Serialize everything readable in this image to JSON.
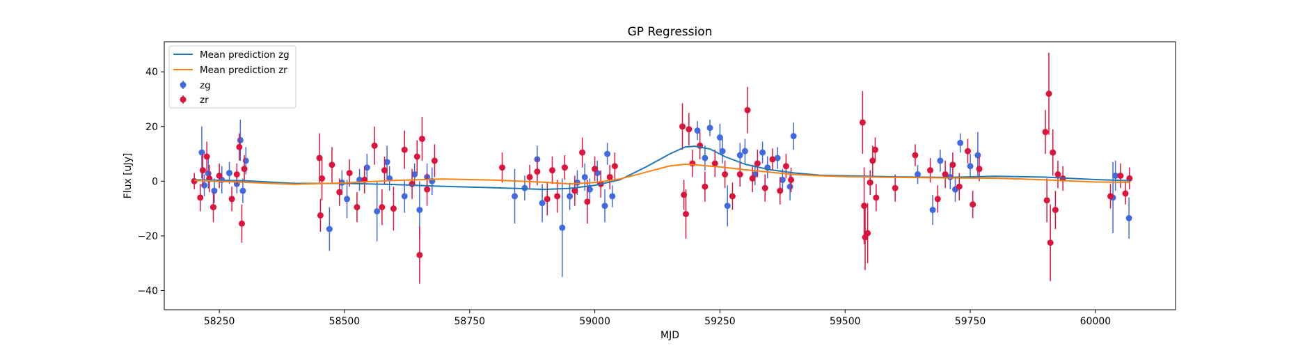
{
  "chart_data": {
    "type": "scatter",
    "title": "GP Regression",
    "xlabel": "MJD",
    "ylabel": "Flux [uJy]",
    "xlim": [
      58140,
      60160
    ],
    "ylim": [
      -47,
      51
    ],
    "x_ticks": [
      58250,
      58500,
      58750,
      59000,
      59250,
      59500,
      59750,
      60000
    ],
    "y_ticks": [
      -40,
      -20,
      0,
      20,
      40
    ],
    "x_tick_labels": [
      "58250",
      "58500",
      "58750",
      "59000",
      "59250",
      "59500",
      "59750",
      "60000"
    ],
    "y_tick_labels": [
      "−40",
      "−20",
      "0",
      "20",
      "40"
    ],
    "legend_position": "top-left",
    "lines": [
      {
        "name": "Mean prediction zg",
        "color": "#1f77b4",
        "x": [
          58200,
          58300,
          58400,
          58500,
          58600,
          58700,
          58800,
          58900,
          58950,
          59000,
          59050,
          59100,
          59150,
          59180,
          59200,
          59230,
          59260,
          59300,
          59350,
          59400,
          59450,
          59500,
          59600,
          59700,
          59800,
          59900,
          60000,
          60070
        ],
        "y": [
          0.5,
          0.2,
          -0.8,
          -0.8,
          -1.2,
          -1.9,
          -2.4,
          -3.0,
          -2.6,
          -1.5,
          0.5,
          5.0,
          10.0,
          12.5,
          12.8,
          11.8,
          9.0,
          6.2,
          4.2,
          3.0,
          2.2,
          2.0,
          1.6,
          1.4,
          1.8,
          1.5,
          0.6,
          0.2
        ]
      },
      {
        "name": "Mean prediction zr",
        "color": "#ff7f0e",
        "x": [
          58200,
          58300,
          58400,
          58500,
          58600,
          58700,
          58800,
          58900,
          58950,
          59000,
          59050,
          59100,
          59150,
          59180,
          59200,
          59250,
          59300,
          59350,
          59400,
          59450,
          59500,
          59600,
          59700,
          59800,
          59900,
          60000,
          60070
        ],
        "y": [
          0.3,
          -0.4,
          -1.1,
          -0.6,
          0.3,
          0.8,
          0.4,
          -0.4,
          -1.0,
          -0.5,
          0.8,
          3.2,
          5.6,
          6.2,
          6.0,
          5.2,
          4.2,
          3.3,
          2.4,
          2.0,
          1.7,
          1.4,
          1.2,
          1.1,
          0.5,
          -0.3,
          -0.4
        ]
      }
    ],
    "series": [
      {
        "name": "zg",
        "color": "#4169e1",
        "points": [
          [
            58215,
            10.5,
            9.5
          ],
          [
            58220,
            -1.5,
            4.0
          ],
          [
            58228,
            2.8,
            5.5
          ],
          [
            58240,
            -3.5,
            4.5
          ],
          [
            58255,
            0.5,
            5.0
          ],
          [
            58270,
            3.0,
            4.0
          ],
          [
            58285,
            -1.0,
            3.5
          ],
          [
            58292,
            15.0,
            7.5
          ],
          [
            58297,
            -3.5,
            4.5
          ],
          [
            58303,
            7.5,
            5.0
          ],
          [
            58470,
            -17.5,
            8.0
          ],
          [
            58495,
            -0.5,
            4.5
          ],
          [
            58505,
            -6.5,
            7.0
          ],
          [
            58530,
            0.5,
            4.0
          ],
          [
            58545,
            5.0,
            5.0
          ],
          [
            58565,
            -11.0,
            11.0
          ],
          [
            58585,
            7.0,
            6.0
          ],
          [
            58590,
            1.0,
            4.5
          ],
          [
            58620,
            -5.5,
            6.0
          ],
          [
            58640,
            2.5,
            4.0
          ],
          [
            58650,
            -10.5,
            10.5
          ],
          [
            58665,
            1.5,
            5.0
          ],
          [
            58675,
            0.0,
            5.0
          ],
          [
            58840,
            -5.5,
            10.0
          ],
          [
            58860,
            -2.5,
            4.5
          ],
          [
            58885,
            8.0,
            5.0
          ],
          [
            58895,
            -8.0,
            7.0
          ],
          [
            58935,
            -17.0,
            18.0
          ],
          [
            58950,
            -5.5,
            5.0
          ],
          [
            58965,
            -0.5,
            4.5
          ],
          [
            58980,
            1.5,
            5.0
          ],
          [
            58990,
            -3.0,
            4.0
          ],
          [
            59005,
            3.0,
            4.5
          ],
          [
            59020,
            -9.0,
            6.0
          ],
          [
            59025,
            10.0,
            4.0
          ],
          [
            59035,
            -5.5,
            4.0
          ],
          [
            59205,
            18.5,
            3.5
          ],
          [
            59220,
            8.5,
            4.5
          ],
          [
            59230,
            19.5,
            3.0
          ],
          [
            59250,
            16.0,
            5.0
          ],
          [
            59255,
            11.0,
            4.5
          ],
          [
            59265,
            -9.0,
            7.5
          ],
          [
            59290,
            9.5,
            4.5
          ],
          [
            59300,
            11.0,
            4.5
          ],
          [
            59320,
            2.5,
            4.0
          ],
          [
            59335,
            10.5,
            4.0
          ],
          [
            59345,
            5.0,
            4.0
          ],
          [
            59365,
            8.5,
            4.0
          ],
          [
            59375,
            0.5,
            4.0
          ],
          [
            59390,
            -2.0,
            5.0
          ],
          [
            59397,
            16.5,
            5.0
          ],
          [
            59645,
            2.5,
            3.5
          ],
          [
            59675,
            -10.5,
            5.5
          ],
          [
            59690,
            7.5,
            4.0
          ],
          [
            59710,
            1.5,
            4.5
          ],
          [
            59720,
            -3.0,
            4.5
          ],
          [
            59730,
            14.0,
            3.5
          ],
          [
            59750,
            5.5,
            4.5
          ],
          [
            59765,
            9.5,
            8.5
          ],
          [
            60035,
            -6.0,
            13.0
          ],
          [
            60040,
            2.0,
            5.5
          ],
          [
            60067,
            -13.5,
            7.5
          ]
        ]
      },
      {
        "name": "zr",
        "color": "#dc143c",
        "points": [
          [
            58200,
            0.0,
            3.0
          ],
          [
            58212,
            -6.0,
            5.0
          ],
          [
            58217,
            4.0,
            6.0
          ],
          [
            58225,
            9.0,
            5.5
          ],
          [
            58230,
            1.0,
            5.0
          ],
          [
            58238,
            -9.5,
            5.5
          ],
          [
            58250,
            2.0,
            4.5
          ],
          [
            58275,
            -6.5,
            4.5
          ],
          [
            58285,
            2.5,
            4.0
          ],
          [
            58290,
            12.5,
            5.0
          ],
          [
            58295,
            -15.5,
            7.0
          ],
          [
            58300,
            4.5,
            5.0
          ],
          [
            58450,
            8.5,
            9.0
          ],
          [
            58452,
            -12.5,
            6.0
          ],
          [
            58455,
            1.0,
            8.0
          ],
          [
            58475,
            6.0,
            6.5
          ],
          [
            58490,
            -4.0,
            5.0
          ],
          [
            58510,
            3.0,
            5.0
          ],
          [
            58525,
            -9.5,
            5.5
          ],
          [
            58540,
            0.5,
            5.0
          ],
          [
            58560,
            13.0,
            7.0
          ],
          [
            58575,
            -9.5,
            6.5
          ],
          [
            58580,
            4.0,
            5.0
          ],
          [
            58598,
            -10.0,
            8.0
          ],
          [
            58620,
            11.5,
            7.0
          ],
          [
            58635,
            -1.0,
            5.5
          ],
          [
            58645,
            9.0,
            6.0
          ],
          [
            58650,
            -27.0,
            10.5
          ],
          [
            58655,
            15.5,
            8.0
          ],
          [
            58665,
            -3.0,
            6.0
          ],
          [
            58680,
            7.5,
            6.0
          ],
          [
            58815,
            5.0,
            5.5
          ],
          [
            58870,
            1.5,
            4.5
          ],
          [
            58885,
            3.5,
            5.0
          ],
          [
            58905,
            -6.5,
            6.0
          ],
          [
            58915,
            4.0,
            5.0
          ],
          [
            58925,
            -5.5,
            6.0
          ],
          [
            58940,
            5.0,
            4.5
          ],
          [
            58960,
            -3.5,
            5.5
          ],
          [
            58975,
            10.5,
            5.5
          ],
          [
            58985,
            -7.5,
            8.0
          ],
          [
            59000,
            4.5,
            4.5
          ],
          [
            59012,
            -1.0,
            5.0
          ],
          [
            59030,
            1.5,
            4.5
          ],
          [
            59040,
            5.5,
            5.0
          ],
          [
            59175,
            20.0,
            8.5
          ],
          [
            59178,
            -5.0,
            5.5
          ],
          [
            59182,
            -12.0,
            9.0
          ],
          [
            59188,
            19.0,
            6.0
          ],
          [
            59195,
            6.5,
            5.0
          ],
          [
            59210,
            13.0,
            5.0
          ],
          [
            59220,
            -2.0,
            5.5
          ],
          [
            59240,
            6.5,
            5.0
          ],
          [
            59260,
            2.5,
            5.0
          ],
          [
            59275,
            -5.5,
            5.0
          ],
          [
            59290,
            2.5,
            4.5
          ],
          [
            59305,
            26.0,
            8.5
          ],
          [
            59315,
            1.0,
            5.0
          ],
          [
            59325,
            6.5,
            5.0
          ],
          [
            59340,
            -2.5,
            5.0
          ],
          [
            59355,
            8.0,
            4.0
          ],
          [
            59370,
            -3.5,
            5.0
          ],
          [
            59382,
            5.5,
            4.5
          ],
          [
            59392,
            0.5,
            4.5
          ],
          [
            59535,
            21.5,
            11.5
          ],
          [
            59538,
            -9.0,
            14.0
          ],
          [
            59540,
            -20.5,
            12.0
          ],
          [
            59545,
            -19.0,
            11.0
          ],
          [
            59550,
            -0.5,
            4.5
          ],
          [
            59555,
            7.5,
            5.5
          ],
          [
            59560,
            11.5,
            4.5
          ],
          [
            59562,
            -6.0,
            5.0
          ],
          [
            59600,
            -2.5,
            5.0
          ],
          [
            59640,
            9.5,
            4.0
          ],
          [
            59670,
            4.0,
            4.5
          ],
          [
            59685,
            -6.5,
            5.0
          ],
          [
            59700,
            2.5,
            5.0
          ],
          [
            59715,
            6.0,
            4.5
          ],
          [
            59728,
            -2.0,
            5.0
          ],
          [
            59745,
            11.0,
            4.5
          ],
          [
            59755,
            -8.5,
            5.0
          ],
          [
            59768,
            4.5,
            4.5
          ],
          [
            59900,
            18.0,
            8.0
          ],
          [
            59903,
            -7.0,
            8.0
          ],
          [
            59907,
            32.0,
            15.0
          ],
          [
            59910,
            -22.5,
            14.0
          ],
          [
            59915,
            10.5,
            8.5
          ],
          [
            59920,
            -10.5,
            7.0
          ],
          [
            59925,
            2.5,
            5.0
          ],
          [
            59935,
            1.0,
            4.5
          ],
          [
            60030,
            -5.5,
            4.5
          ],
          [
            60050,
            2.0,
            4.5
          ],
          [
            60060,
            -4.5,
            4.0
          ],
          [
            60068,
            1.0,
            4.0
          ]
        ]
      }
    ]
  }
}
